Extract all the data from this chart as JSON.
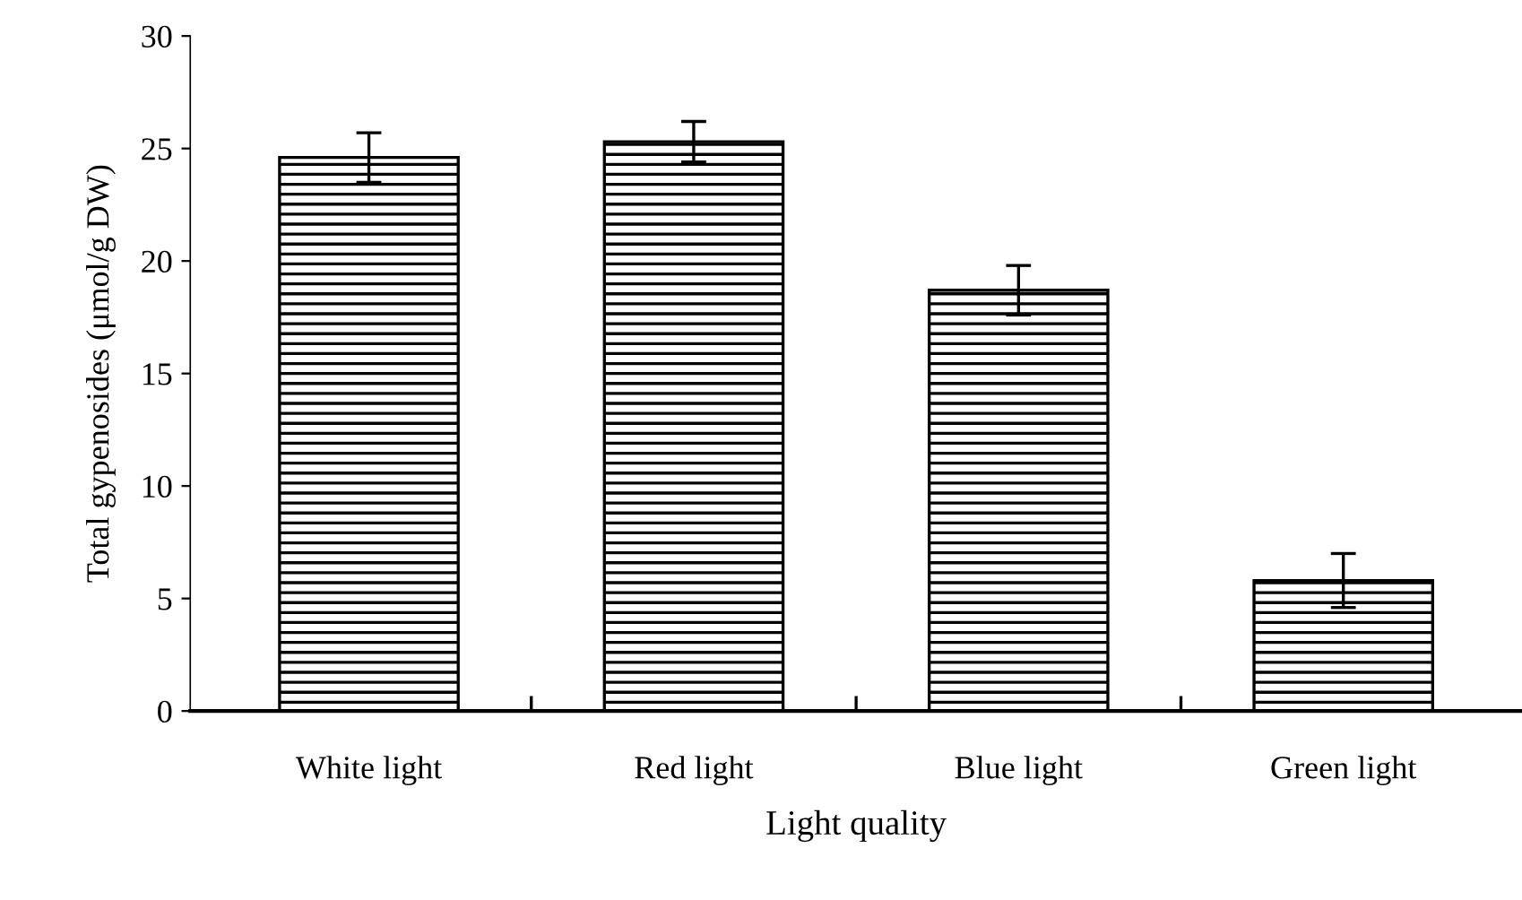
{
  "chart_data": {
    "type": "bar",
    "xlabel": "Light quality",
    "ylabel": "Total gypenosides (μmol/g DW)",
    "categories": [
      "White light",
      "Red light",
      "Blue light",
      "Green light"
    ],
    "values": [
      24.6,
      25.3,
      18.7,
      5.8
    ],
    "errors": [
      1.1,
      0.9,
      1.1,
      1.2
    ],
    "color": "#000000",
    "ylim": [
      0,
      30
    ],
    "yticks": [
      0,
      5,
      10,
      15,
      20,
      25,
      30
    ],
    "grid": false
  }
}
